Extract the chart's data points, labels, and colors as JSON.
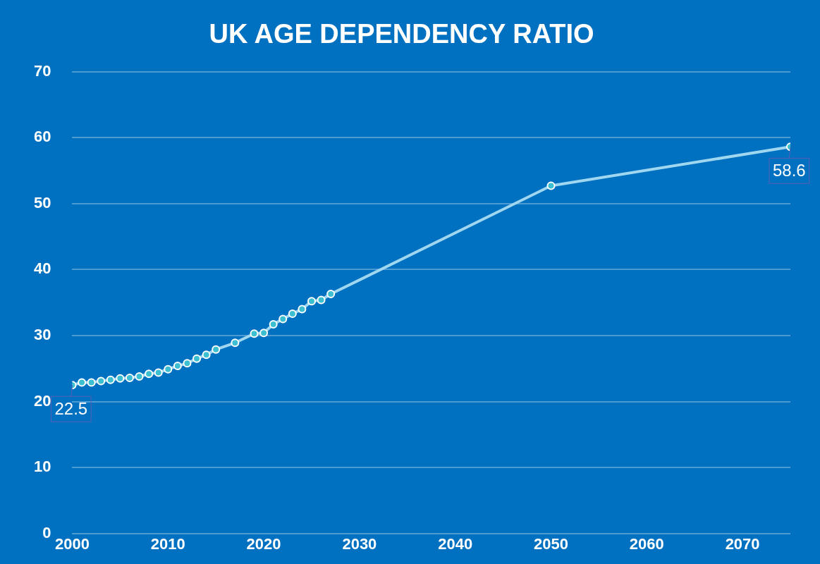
{
  "chart_data": {
    "type": "line",
    "title": "UK AGE DEPENDENCY RATIO",
    "x": [
      2000,
      2001,
      2002,
      2003,
      2004,
      2005,
      2006,
      2007,
      2008,
      2009,
      2010,
      2011,
      2012,
      2013,
      2014,
      2015,
      2017,
      2019,
      2020,
      2021,
      2022,
      2023,
      2024,
      2025,
      2026,
      2027,
      2050,
      2075
    ],
    "series": [
      {
        "color": "#9fd6f0",
        "values": [
          22.5,
          22.9,
          22.9,
          23.1,
          23.3,
          23.5,
          23.6,
          23.8,
          24.2,
          24.4,
          24.9,
          25.4,
          25.8,
          26.5,
          27.1,
          27.9,
          28.9,
          30.3,
          30.4,
          31.7,
          32.5,
          33.3,
          34.0,
          35.2,
          35.4,
          36.3,
          52.7,
          58.6
        ],
        "value_labels": [
          "22.5",
          null,
          null,
          null,
          null,
          null,
          null,
          null,
          null,
          null,
          null,
          null,
          null,
          null,
          null,
          null,
          null,
          null,
          null,
          null,
          null,
          null,
          null,
          null,
          null,
          null,
          null,
          "58.6"
        ]
      }
    ],
    "xlim": [
      2000,
      2075
    ],
    "xticks": [
      2000,
      2010,
      2020,
      2030,
      2040,
      2050,
      2060,
      2070
    ],
    "ylim": [
      0,
      70
    ],
    "yticks": [
      0,
      10,
      20,
      30,
      40,
      50,
      60,
      70
    ],
    "grid": "y",
    "legend": false,
    "marker": "circle",
    "line_style": "solid"
  }
}
